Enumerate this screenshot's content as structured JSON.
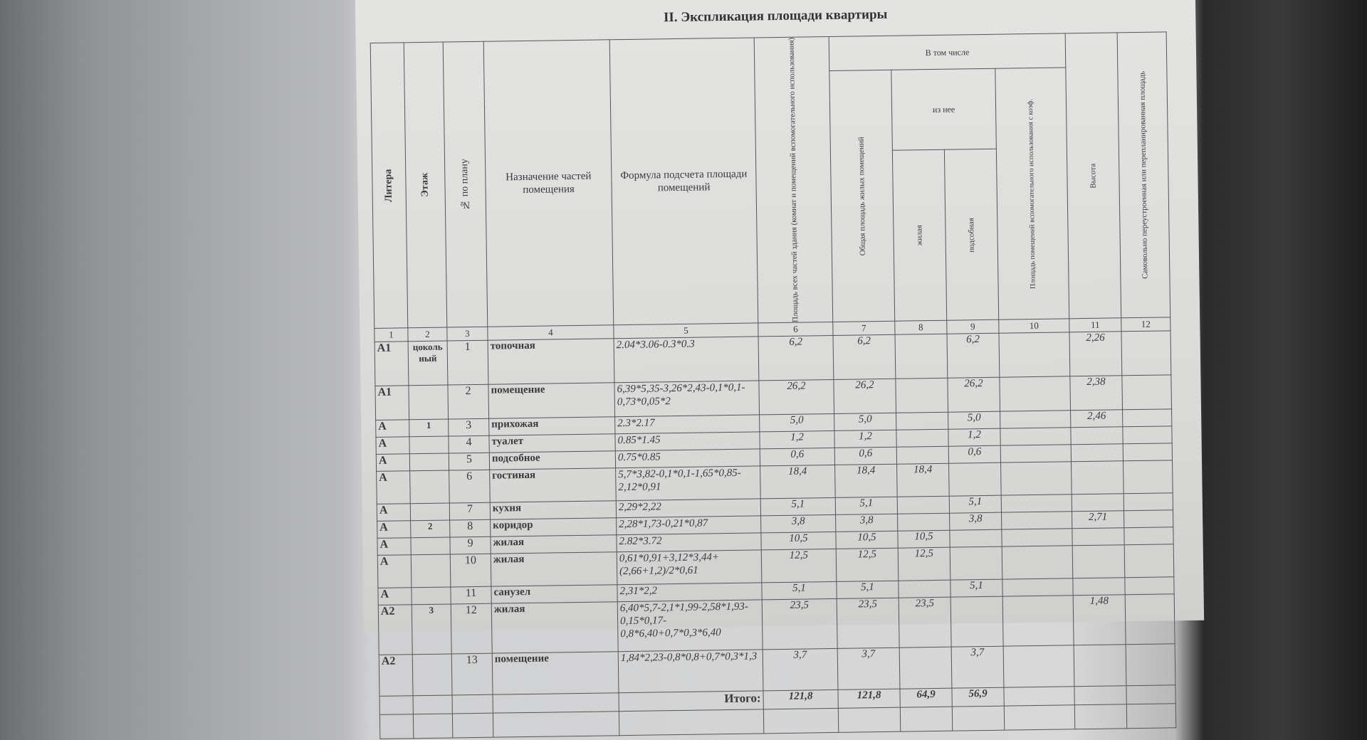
{
  "prev_table_cell": "4",
  "title": "II. Экспликация площади квартиры",
  "headers": {
    "litera": "Литера",
    "floor": "Этаж",
    "plan_no": "№ по плану",
    "purpose": "Назначение частей помещения",
    "formula": "Формула подсчета площади помещений",
    "total_area": "Площадь всех частей здания (комнат и помещений вспомогательного использования)",
    "including": "В том числе",
    "general_living": "Общая площадь жилых помещений",
    "of_which": "из нее",
    "living": "жилая",
    "auxiliary": "подсобная",
    "aux_coef": "Площадь помещений вспомогательного использования с коэф.",
    "height": "Высота",
    "unauthorized": "Самовольно переустроенная или перепланированная площадь"
  },
  "column_numbers": [
    "1",
    "2",
    "3",
    "4",
    "5",
    "6",
    "7",
    "8",
    "9",
    "10",
    "11",
    "12"
  ],
  "rows": [
    {
      "litera": "A1",
      "floor": "цокольный",
      "no": "1",
      "name": "топочная",
      "formula": "2.04*3.06-0.3*0.3",
      "c6": "6,2",
      "c7": "6,2",
      "c8": "",
      "c9": "6,2",
      "c10": "",
      "c11": "2,26",
      "c12": ""
    },
    {
      "litera": "A1",
      "floor": "",
      "no": "2",
      "name": "помещение",
      "formula": "6,39*5,35-3,26*2,43-0,1*0,1-0,73*0,05*2",
      "c6": "26,2",
      "c7": "26,2",
      "c8": "",
      "c9": "26,2",
      "c10": "",
      "c11": "2,38",
      "c12": ""
    },
    {
      "litera": "A",
      "floor": "1",
      "no": "3",
      "name": "прихожая",
      "formula": "2.3*2.17",
      "c6": "5,0",
      "c7": "5,0",
      "c8": "",
      "c9": "5,0",
      "c10": "",
      "c11": "2,46",
      "c12": ""
    },
    {
      "litera": "A",
      "floor": "",
      "no": "4",
      "name": "туалет",
      "formula": "0.85*1.45",
      "c6": "1,2",
      "c7": "1,2",
      "c8": "",
      "c9": "1,2",
      "c10": "",
      "c11": "",
      "c12": ""
    },
    {
      "litera": "A",
      "floor": "",
      "no": "5",
      "name": "подсобное",
      "formula": "0.75*0.85",
      "c6": "0,6",
      "c7": "0,6",
      "c8": "",
      "c9": "0,6",
      "c10": "",
      "c11": "",
      "c12": ""
    },
    {
      "litera": "A",
      "floor": "",
      "no": "6",
      "name": "гостиная",
      "formula": "5,7*3,82-0,1*0,1-1,65*0,85-2,12*0,91",
      "c6": "18,4",
      "c7": "18,4",
      "c8": "18,4",
      "c9": "",
      "c10": "",
      "c11": "",
      "c12": ""
    },
    {
      "litera": "A",
      "floor": "",
      "no": "7",
      "name": "кухня",
      "formula": "2,29*2,22",
      "c6": "5,1",
      "c7": "5,1",
      "c8": "",
      "c9": "5,1",
      "c10": "",
      "c11": "",
      "c12": ""
    },
    {
      "litera": "A",
      "floor": "2",
      "no": "8",
      "name": "коридор",
      "formula": "2,28*1,73-0,21*0,87",
      "c6": "3,8",
      "c7": "3,8",
      "c8": "",
      "c9": "3,8",
      "c10": "",
      "c11": "2,71",
      "c12": ""
    },
    {
      "litera": "A",
      "floor": "",
      "no": "9",
      "name": "жилая",
      "formula": "2.82*3.72",
      "c6": "10,5",
      "c7": "10,5",
      "c8": "10,5",
      "c9": "",
      "c10": "",
      "c11": "",
      "c12": ""
    },
    {
      "litera": "A",
      "floor": "",
      "no": "10",
      "name": "жилая",
      "formula": "0,61*0,91+3,12*3,44+(2,66+1,2)/2*0,61",
      "c6": "12,5",
      "c7": "12,5",
      "c8": "12,5",
      "c9": "",
      "c10": "",
      "c11": "",
      "c12": ""
    },
    {
      "litera": "A",
      "floor": "",
      "no": "11",
      "name": "санузел",
      "formula": "2,31*2,2",
      "c6": "5,1",
      "c7": "5,1",
      "c8": "",
      "c9": "5,1",
      "c10": "",
      "c11": "",
      "c12": ""
    },
    {
      "litera": "A2",
      "floor": "3",
      "no": "12",
      "name": "жилая",
      "formula": "6,40*5,7-2,1*1,99-2,58*1,93-0,15*0,17-0,8*6,40+0,7*0,3*6,40",
      "c6": "23,5",
      "c7": "23,5",
      "c8": "23,5",
      "c9": "",
      "c10": "",
      "c11": "1,48",
      "c12": ""
    },
    {
      "litera": "A2",
      "floor": "",
      "no": "13",
      "name": "помещение",
      "formula": "1,84*2,23-0,8*0,8+0,7*0,3*1,3",
      "c6": "3,7",
      "c7": "3,7",
      "c8": "",
      "c9": "3,7",
      "c10": "",
      "c11": "",
      "c12": ""
    }
  ],
  "total": {
    "label": "Итого:",
    "c6": "121,8",
    "c7": "121,8",
    "c8": "64,9",
    "c9": "56,9"
  }
}
